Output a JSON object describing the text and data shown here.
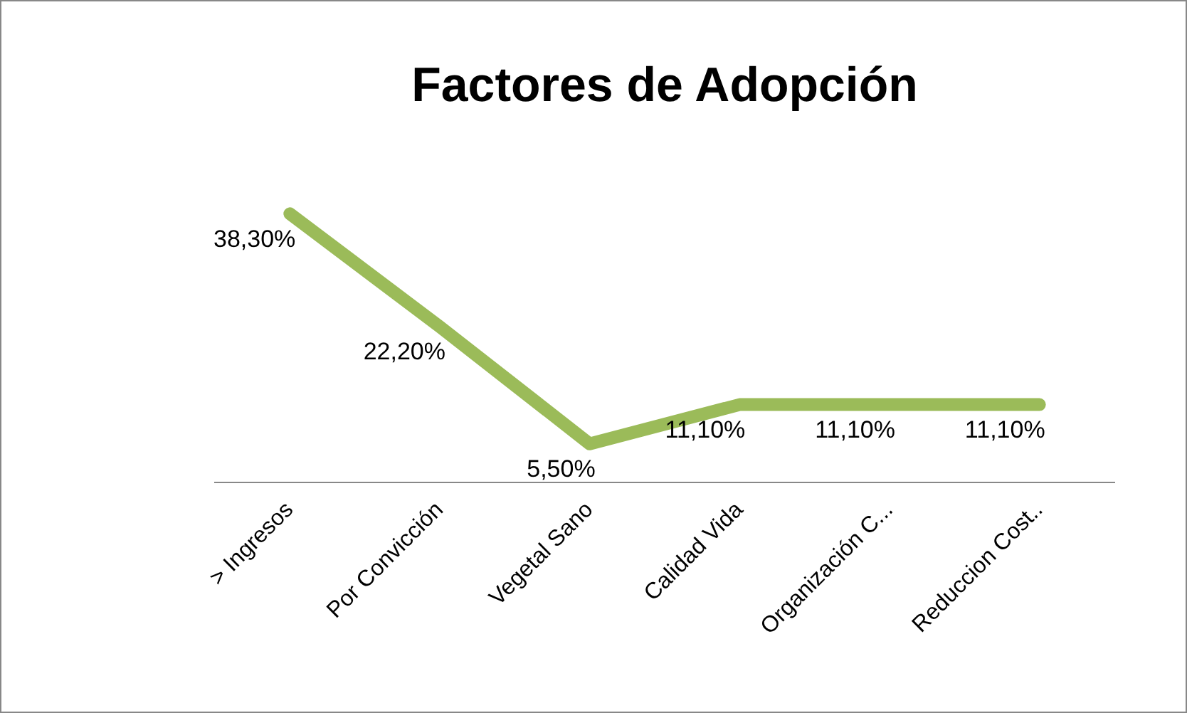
{
  "chart_data": {
    "type": "line",
    "title": "Factores de Adopción",
    "categories": [
      "> Ingresos",
      "Por Convicción",
      "Vegetal Sano",
      "Calidad Vida",
      "Organización C...",
      "Reduccion Cost.."
    ],
    "series": [
      {
        "color": "#9bbb59",
        "values": [
          38.3,
          22.2,
          5.5,
          11.1,
          11.1,
          11.1
        ],
        "value_labels": [
          "38,30%",
          "22,20%",
          "5,50%",
          "11,10%",
          "11,10%",
          "11,10%"
        ]
      }
    ],
    "legend": false,
    "grid": false,
    "marker": "none",
    "line_style": "solid"
  }
}
